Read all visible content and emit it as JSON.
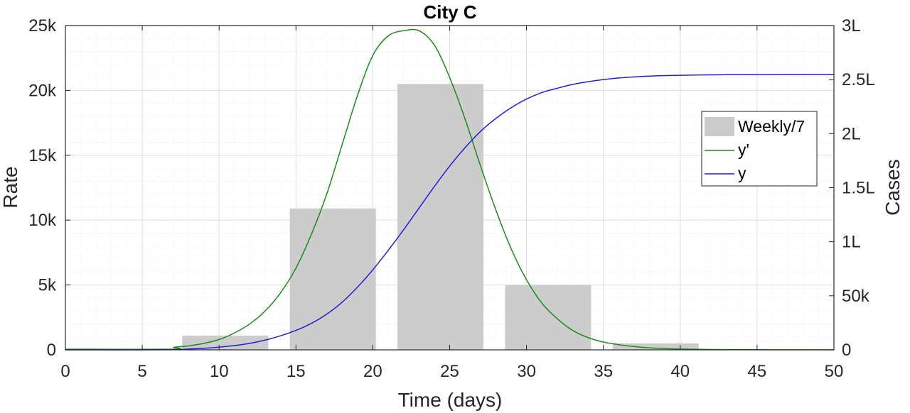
{
  "chart_data": {
    "type": "bar",
    "title": "City C",
    "xlabel": "Time (days)",
    "ylabel_left": "Rate",
    "ylabel_right": "Cases",
    "xlim": [
      0,
      50
    ],
    "ylim_left": [
      0,
      25000
    ],
    "ylim_right": [
      0,
      300000
    ],
    "xticks": [
      0,
      5,
      10,
      15,
      20,
      25,
      30,
      35,
      40,
      45,
      50
    ],
    "xtick_labels": [
      "0",
      "5",
      "10",
      "15",
      "20",
      "25",
      "30",
      "35",
      "40",
      "45",
      "50"
    ],
    "yticks_left": [
      0,
      5000,
      10000,
      15000,
      20000,
      25000
    ],
    "ytick_labels_left": [
      "0",
      "5k",
      "10k",
      "15k",
      "20k",
      "25k"
    ],
    "yticks_right": [
      0,
      50000,
      100000,
      150000,
      200000,
      250000,
      300000
    ],
    "ytick_labels_right": [
      "0",
      "50k",
      "1L",
      "1.5L",
      "2L",
      "2.5L",
      "3L"
    ],
    "grid": true,
    "legend_position": "right",
    "bars": {
      "name": "Weekly/7",
      "color": "#cccccc",
      "x_start": [
        7.6,
        14.6,
        21.6,
        28.6,
        35.6
      ],
      "x_end": [
        13.2,
        20.2,
        27.2,
        34.2,
        41.2
      ],
      "values": [
        1100,
        10900,
        20500,
        5000,
        500
      ]
    },
    "series": [
      {
        "name": "y'",
        "axis": "left",
        "color": "#1a8a1a",
        "x": [
          0,
          7,
          7.05,
          8,
          9,
          10,
          11,
          12,
          13,
          14,
          15,
          16,
          17,
          18,
          19,
          20,
          21,
          22,
          23,
          24,
          25,
          26,
          27,
          28,
          29,
          30,
          31,
          32,
          33,
          34,
          35,
          36,
          37,
          38,
          39,
          40,
          42,
          44,
          46,
          48,
          50
        ],
        "values": [
          50,
          50,
          200,
          300,
          500,
          800,
          1300,
          2000,
          3000,
          4400,
          6300,
          8900,
          12000,
          15800,
          19600,
          22700,
          24200,
          24600,
          24600,
          23500,
          21000,
          17800,
          14200,
          10800,
          7800,
          5400,
          3600,
          2400,
          1500,
          950,
          600,
          400,
          250,
          150,
          100,
          60,
          30,
          15,
          10,
          5,
          5
        ]
      },
      {
        "name": "y",
        "axis": "right",
        "color": "#1f1fd6",
        "x": [
          0,
          5,
          7,
          8,
          9,
          10,
          11,
          12,
          13,
          14,
          15,
          16,
          17,
          18,
          19,
          20,
          21,
          22,
          23,
          24,
          25,
          26,
          27,
          28,
          29,
          30,
          31,
          32,
          33,
          34,
          35,
          36,
          37,
          38,
          39,
          40,
          42,
          44,
          46,
          48,
          50
        ],
        "values": [
          0,
          0,
          200,
          700,
          1400,
          2500,
          4000,
          6000,
          9000,
          13000,
          18000,
          24500,
          33000,
          44000,
          58000,
          74000,
          92000,
          111000,
          131000,
          151000,
          170000,
          187000,
          202000,
          214000,
          224000,
          232000,
          238000,
          242000,
          245500,
          248000,
          250000,
          251500,
          252500,
          253200,
          253700,
          254000,
          254400,
          254600,
          254700,
          254800,
          254800
        ]
      }
    ]
  }
}
